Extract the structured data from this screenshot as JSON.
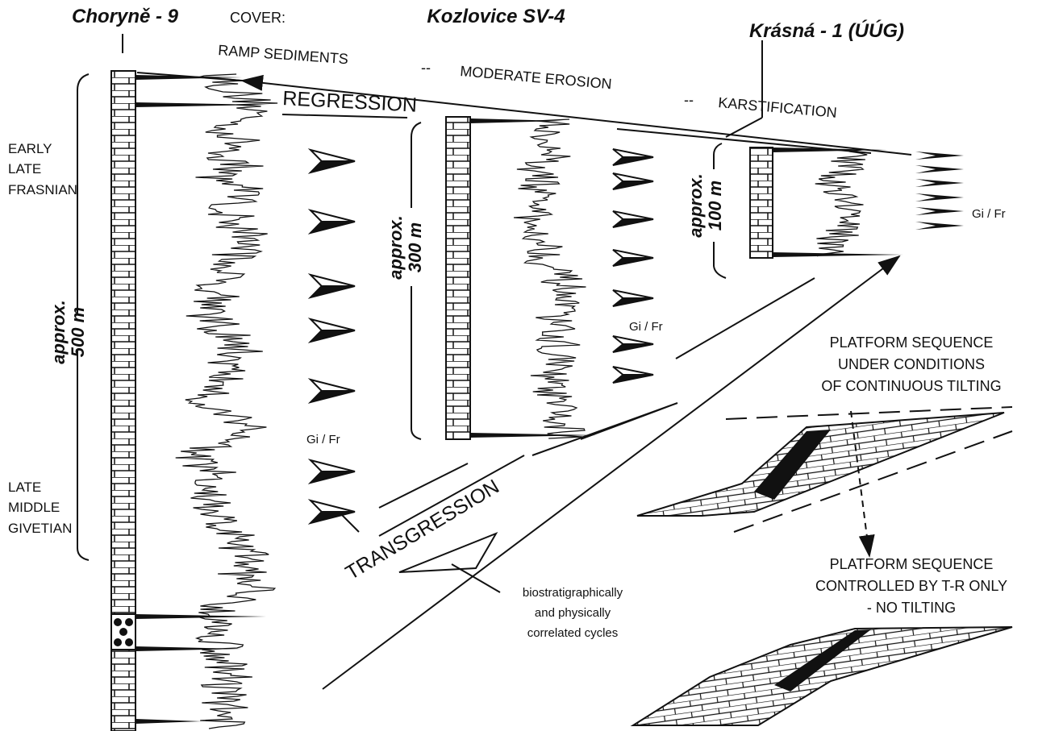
{
  "wells": [
    {
      "name": "Choryně - 9",
      "approx": "approx.",
      "thickness": "500 m",
      "gi_fr": "Gi / Fr"
    },
    {
      "name": "Kozlovice SV-4",
      "approx": "approx.",
      "thickness": "300 m",
      "gi_fr": "Gi / Fr"
    },
    {
      "name": "Krásná - 1 (ÚÚG)",
      "approx": "approx.",
      "thickness": "100 m",
      "gi_fr": "Gi / Fr"
    }
  ],
  "cover": {
    "label": "COVER:",
    "items": [
      "RAMP SEDIMENTS",
      "--",
      "MODERATE EROSION",
      "--",
      "KARSTIFICATION"
    ]
  },
  "regression": "REGRESSION",
  "transgression": "TRANSGRESSION",
  "stages": {
    "upper": [
      "EARLY",
      "LATE",
      "FRASNIAN"
    ],
    "lower": [
      "LATE",
      "MIDDLE",
      "GIVETIAN"
    ]
  },
  "note": [
    "biostratigraphically",
    "and physically",
    "correlated cycles"
  ],
  "platform_tilting": [
    "PLATFORM SEQUENCE",
    "UNDER CONDITIONS",
    "OF CONTINUOUS TILTING"
  ],
  "platform_no_tilting": [
    "PLATFORM SEQUENCE",
    "CONTROLLED BY T-R ONLY",
    "- NO TILTING"
  ]
}
